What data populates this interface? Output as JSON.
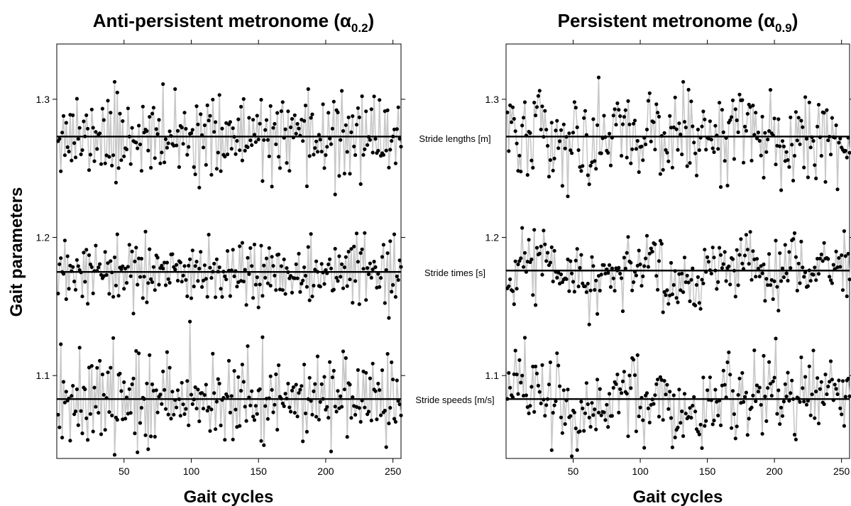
{
  "figure": {
    "ylabel": "Gait parameters"
  },
  "chart_data": [
    {
      "type": "scatter",
      "title": "Anti-persistent metronome",
      "title_greek": "α",
      "title_subscript": "0.2",
      "title_close": ")",
      "xlabel": "Gait cycles",
      "ylabel": "Gait parameters",
      "xlim": [
        0,
        256
      ],
      "ylim": [
        1.04,
        1.34
      ],
      "xticks": [
        50,
        100,
        150,
        200,
        250
      ],
      "yticks": [
        1.1,
        1.2,
        1.3
      ],
      "grid": false,
      "line_color": "#c8c8c8",
      "point_color": "#000000",
      "series": [
        {
          "name": "Stride lengths [m]",
          "center": 1.273,
          "spread": 0.016,
          "alpha": 0.2,
          "n": 256,
          "seed": 11
        },
        {
          "name": "Stride times [s]",
          "center": 1.175,
          "spread": 0.012,
          "alpha": 0.2,
          "n": 256,
          "seed": 23
        },
        {
          "name": "Stride speeds [m/s]",
          "center": 1.083,
          "spread": 0.017,
          "alpha": 0.2,
          "n": 256,
          "seed": 37
        }
      ]
    },
    {
      "type": "scatter",
      "title": "Persistent metronome",
      "title_greek": "α",
      "title_subscript": "0.9",
      "title_close": ")",
      "xlabel": "Gait cycles",
      "ylabel": "",
      "xlim": [
        0,
        256
      ],
      "ylim": [
        1.04,
        1.34
      ],
      "xticks": [
        50,
        100,
        150,
        200,
        250
      ],
      "yticks": [
        1.1,
        1.2,
        1.3
      ],
      "grid": false,
      "line_color": "#c8c8c8",
      "point_color": "#000000",
      "series": [
        {
          "name": "Stride lengths [m]",
          "center": 1.273,
          "spread": 0.017,
          "alpha": 0.9,
          "n": 256,
          "seed": 51
        },
        {
          "name": "Stride times [s]",
          "center": 1.176,
          "spread": 0.013,
          "alpha": 0.9,
          "n": 256,
          "seed": 67
        },
        {
          "name": "Stride speeds [m/s]",
          "center": 1.083,
          "spread": 0.016,
          "alpha": 0.9,
          "n": 256,
          "seed": 79
        }
      ]
    }
  ]
}
